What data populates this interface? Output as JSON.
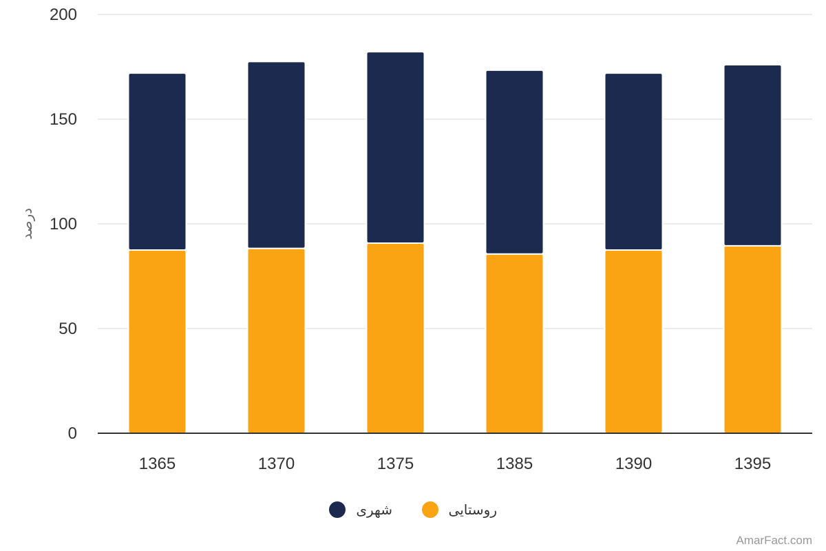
{
  "chart_data": {
    "type": "bar",
    "stacked": true,
    "categories": [
      "1365",
      "1370",
      "1375",
      "1385",
      "1390",
      "1395"
    ],
    "series": [
      {
        "name": "روستایی",
        "color": "#FAA413",
        "values": [
          87.5,
          88.3,
          90.8,
          85.6,
          87.5,
          89.5
        ]
      },
      {
        "name": "شهری",
        "color": "#1B2A4E",
        "values": [
          84.5,
          89.2,
          91.4,
          87.8,
          84.5,
          86.5
        ]
      }
    ],
    "ylabel": "درصد",
    "ylim": [
      0,
      200
    ],
    "yticks": [
      0,
      50,
      100,
      150,
      200
    ],
    "grid": true,
    "legend_position": "bottom-center"
  },
  "legend": {
    "items": [
      {
        "label": "شهری",
        "color": "#1B2A4E"
      },
      {
        "label": "روستایی",
        "color": "#FAA413"
      }
    ]
  },
  "credit": "AmarFact.com"
}
